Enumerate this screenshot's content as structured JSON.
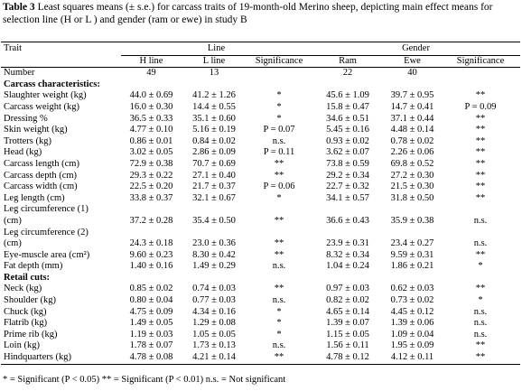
{
  "header": {
    "label": "Table 3",
    "caption": "Least squares means (± s.e.) for carcass traits of 19-month-old Merino sheep, depicting main effect means for selection line (H or L ) and gender (ram or ewe) in study B"
  },
  "table": {
    "group_headers": [
      "Trait",
      "Line",
      "Gender"
    ],
    "column_headers": [
      "H line",
      "L line",
      "Significance",
      "Ram",
      "Ewe",
      "Significance"
    ],
    "rows": [
      [
        "Number",
        "49",
        "13",
        null,
        "22",
        "40",
        null
      ],
      [
        "Carcass characteristics:"
      ],
      [
        "Slaughter weight (kg)",
        "44.0 ± 0.69",
        "41.2 ± 1.26",
        "*",
        "45.6 ± 1.09",
        "39.7 ± 0.95",
        "**"
      ],
      [
        "Carcass weight (kg)",
        "16.0 ± 0.30",
        "14.4 ± 0.55",
        "*",
        "15.8 ± 0.47",
        "14.7 ± 0.41",
        "P = 0.09"
      ],
      [
        "Dressing %",
        "36.5 ± 0.33",
        "35.1 ± 0.60",
        "*",
        "34.6 ± 0.51",
        "37.1 ± 0.44",
        "**"
      ],
      [
        "Skin weight (kg)",
        "4.77 ± 0.10",
        "5.16 ± 0.19",
        "P = 0.07",
        "5.45 ± 0.16",
        "4.48 ± 0.14",
        "**"
      ],
      [
        "Trotters (kg)",
        "0.86 ± 0.01",
        "0.84 ± 0.02",
        "n.s.",
        "0.93 ± 0.02",
        "0.78 ± 0.02",
        "**"
      ],
      [
        "Head (kg)",
        "3.02 ± 0.05",
        "2.86 ± 0.09",
        "P = 0.11",
        "3.62 ± 0.07",
        "2.26 ± 0.06",
        "**"
      ],
      [
        "Carcass length (cm)",
        "72.9 ± 0.38",
        "70.7 ± 0.69",
        "**",
        "73.8 ± 0.59",
        "69.8 ± 0.52",
        "**"
      ],
      [
        "Carcass depth (cm)",
        "29.3 ± 0.22",
        "27.1 ± 0.40",
        "**",
        "29.2 ± 0.34",
        "27.2 ± 0.30",
        "**"
      ],
      [
        "Carcass width (cm)",
        "22.5 ± 0.20",
        "21.7 ± 0.37",
        "P = 0.06",
        "22.7 ± 0.32",
        "21.5 ± 0.30",
        "**"
      ],
      [
        "Leg length (cm)",
        "33.8 ± 0.37",
        "32.1 ± 0.67",
        "*",
        "34.1 ± 0.57",
        "31.8 ± 0.50",
        "**"
      ],
      [
        "Leg circumference (1)\n(cm)",
        "37.2 ± 0.28",
        "35.4 ± 0.50",
        "**",
        "36.6 ± 0.43",
        "35.9 ± 0.38",
        "n.s."
      ],
      [
        "Leg circumference (2)\n(cm)",
        "24.3 ± 0.18",
        "23.0 ± 0.36",
        "**",
        "23.9 ± 0.31",
        "23.4 ± 0.27",
        "n.s."
      ],
      [
        "Eye-muscle area (cm²)",
        "9.60 ± 0.23",
        "8.30 ± 0.42",
        "**",
        "8.32 ± 0.34",
        "9.59 ± 0.31",
        "**"
      ],
      [
        "Fat depth (mm)",
        "1.40 ± 0.16",
        "1.49 ± 0.29",
        "n.s.",
        "1.04 ± 0.24",
        "1.86 ± 0.21",
        "*"
      ],
      [
        "Retail cuts:"
      ],
      [
        "Neck (kg)",
        "0.85 ± 0.02",
        "0.74 ± 0.03",
        "**",
        "0.97 ± 0.03",
        "0.62 ± 0.03",
        "**"
      ],
      [
        "Shoulder (kg)",
        "0.80 ± 0.04",
        "0.77 ± 0.03",
        "n.s.",
        "0.82 ± 0.02",
        "0.73 ± 0.02",
        "*"
      ],
      [
        "Chuck (kg)",
        "4.75 ± 0.09",
        "4.34 ± 0.16",
        "*",
        "4.65 ± 0.14",
        "4.45 ± 0.12",
        "n.s."
      ],
      [
        "Flatrib (kg)",
        "1.49 ± 0.05",
        "1.29 ± 0.08",
        "*",
        "1.39 ± 0.07",
        "1.39 ± 0.06",
        "n.s."
      ],
      [
        "Prime rib (kg)",
        "1.19 ± 0.03",
        "1.05 ± 0.05",
        "*",
        "1.15 ± 0.05",
        "1.09 ± 0.04",
        "n.s."
      ],
      [
        "Loin (kg)",
        "1.78 ± 0.07",
        "1.73 ± 0.13",
        "n.s.",
        "1.56 ± 0.11",
        "1.95 ± 0.09",
        "**"
      ],
      [
        "Hindquarters (kg)",
        "4.78 ± 0.08",
        "4.21 ± 0.14",
        "**",
        "4.78 ± 0.12",
        "4.12 ± 0.11",
        "**"
      ]
    ]
  },
  "footnote": "* = Significant (P < 0.05) ** = Significant (P < 0.01) n.s. = Not significant"
}
